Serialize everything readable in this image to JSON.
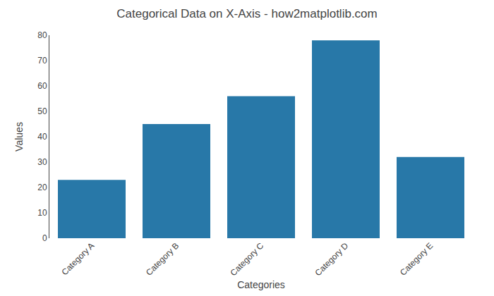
{
  "chart_data": {
    "type": "bar",
    "title": "Categorical Data on X-Axis - how2matplotlib.com",
    "xlabel": "Categories",
    "ylabel": "Values",
    "categories": [
      "Category A",
      "Category B",
      "Category C",
      "Category D",
      "Category E"
    ],
    "values": [
      23,
      45,
      56,
      78,
      32
    ],
    "color": "#2878a8",
    "ylim": [
      0,
      80
    ],
    "yticks": [
      0,
      10,
      20,
      30,
      40,
      50,
      60,
      70,
      80
    ],
    "grid": false
  }
}
